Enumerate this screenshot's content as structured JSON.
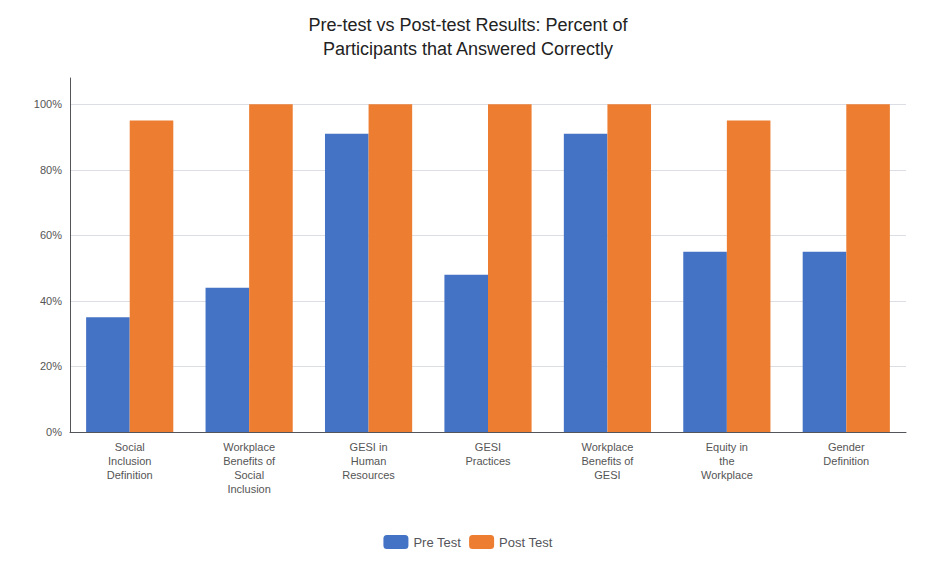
{
  "chart_data": {
    "type": "bar",
    "title": "Pre-test vs Post-test Results: Percent of\nParticipants that Answered Correctly",
    "categories": [
      "Social\nInclusion\nDefinition",
      "Workplace\nBenefits of\nSocial\nInclusion",
      "GESI in\nHuman\nResources",
      "GESI\nPractices",
      "Workplace\nBenefits of\nGESI",
      "Equity in\nthe\nWorkplace",
      "Gender\nDefinition"
    ],
    "series": [
      {
        "name": "Pre Test",
        "color": "#4472C4",
        "values": [
          0.35,
          0.44,
          0.91,
          0.48,
          0.91,
          0.55,
          0.55
        ]
      },
      {
        "name": "Post Test",
        "color": "#ED7D31",
        "values": [
          0.95,
          1.0,
          1.0,
          1.0,
          1.0,
          0.95,
          1.0
        ]
      }
    ],
    "ylim": [
      0,
      1.08
    ],
    "yticks": [
      {
        "value": 0,
        "label": "0%"
      },
      {
        "value": 0.2,
        "label": "20%"
      },
      {
        "value": 0.4,
        "label": "40%"
      },
      {
        "value": 0.6,
        "label": "60%"
      },
      {
        "value": 0.8,
        "label": "80%"
      },
      {
        "value": 1.0,
        "label": "100%"
      }
    ],
    "grid": true,
    "legend": "bottom"
  }
}
